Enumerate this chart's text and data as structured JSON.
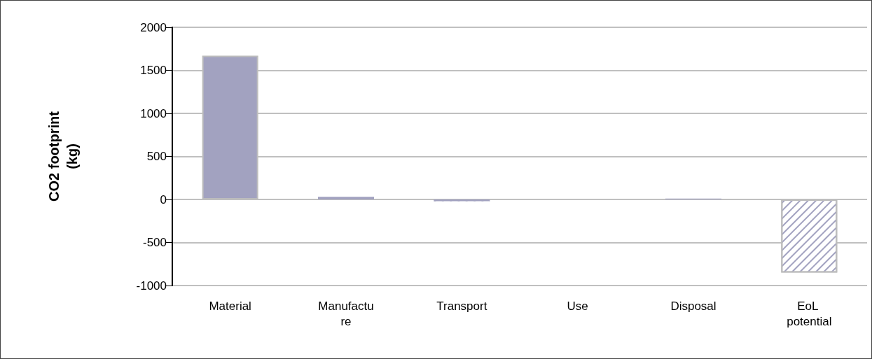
{
  "chart_data": {
    "type": "bar",
    "ylabel": "CO2 footprint (kg)",
    "categories": [
      "Material",
      "Manufacture",
      "Transport",
      "Use",
      "Disposal",
      "EoL potential"
    ],
    "values": [
      1670,
      30,
      -20,
      0,
      10,
      -850
    ],
    "color": "#a2a2c0",
    "colors": [
      "#a2a2c0",
      "#a2a2c0",
      "#a2a2c0",
      "#a2a2c0",
      "#a2a2c0",
      "#ffffff"
    ],
    "ylim": [
      -1000,
      2000
    ],
    "yticks": [
      -1000,
      -500,
      0,
      500,
      1000,
      1500,
      2000
    ],
    "grid": "y"
  }
}
